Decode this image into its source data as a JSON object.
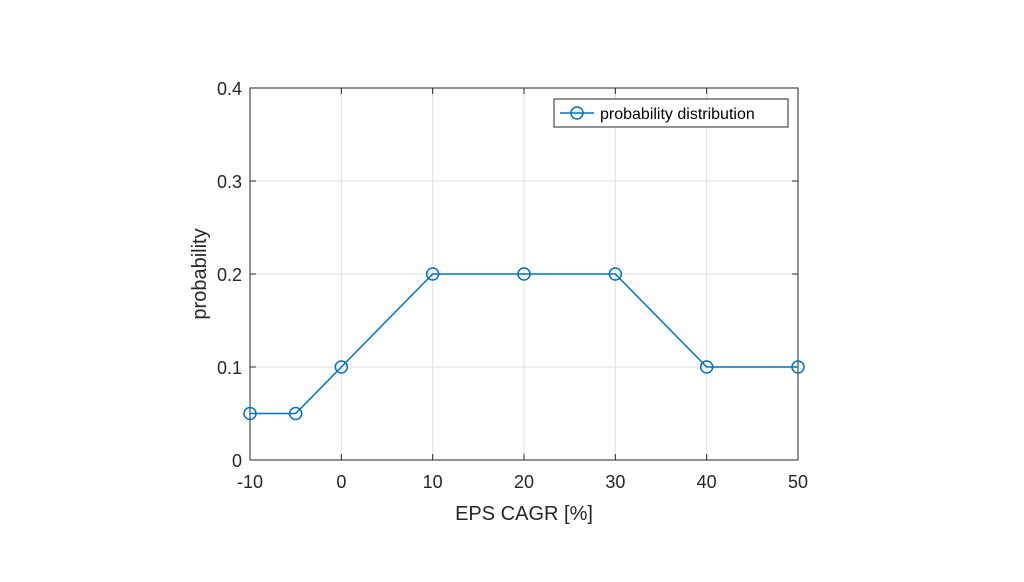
{
  "chart_data": {
    "type": "line",
    "title": "",
    "xlabel": "EPS CAGR [%]",
    "ylabel": "probability",
    "xlim": [
      -10,
      50
    ],
    "ylim": [
      0,
      0.4
    ],
    "xticks": [
      -10,
      0,
      10,
      20,
      30,
      40,
      50
    ],
    "yticks": [
      0,
      0.1,
      0.2,
      0.3,
      0.4
    ],
    "xtick_labels": [
      "-10",
      "0",
      "10",
      "20",
      "30",
      "40",
      "50"
    ],
    "ytick_labels": [
      "0",
      "0.1",
      "0.2",
      "0.3",
      "0.4"
    ],
    "grid": true,
    "legend_position": "top-right",
    "series": [
      {
        "name": "probability distribution",
        "color": "#0072BD",
        "marker": "circle",
        "x": [
          -10,
          -5,
          0,
          10,
          20,
          30,
          40,
          50
        ],
        "y": [
          0.05,
          0.05,
          0.1,
          0.2,
          0.2,
          0.2,
          0.1,
          0.1
        ]
      }
    ]
  }
}
